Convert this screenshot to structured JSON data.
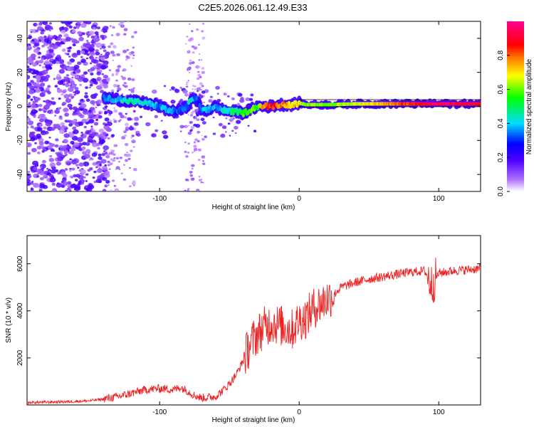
{
  "figure_title": "C2E5.2026.061.12.49.E33",
  "chart_data": [
    {
      "type": "heatmap",
      "title": "C2E5.2026.061.12.49.E33",
      "xlabel": "Height of straight line (km)",
      "ylabel": "Frequency (Hz)",
      "xlim": [
        -195,
        130
      ],
      "ylim": [
        -50,
        50
      ],
      "xticks": [
        -100,
        0,
        100
      ],
      "yticks": [
        -40,
        -20,
        0,
        20,
        40
      ],
      "colorbar": {
        "label": "Normalized spectral amplitude",
        "range": [
          0,
          1
        ],
        "ticks": [
          0.0,
          0.2,
          0.4,
          0.6,
          0.8
        ],
        "colormap": [
          "#ffffff",
          "#7b00ff",
          "#0000ff",
          "#00ffff",
          "#00ff00",
          "#ffff00",
          "#ff0000",
          "#ff00ff"
        ]
      },
      "ridge": {
        "x": [
          -140,
          -130,
          -120,
          -110,
          -100,
          -95,
          -90,
          -85,
          -80,
          -78,
          -75,
          -72,
          -70,
          -65,
          -60,
          -55,
          -50,
          -45,
          -40,
          -35,
          -30,
          -25,
          -20,
          -15,
          -10,
          -5,
          0,
          5,
          10,
          20,
          40,
          60,
          80,
          100,
          120,
          130
        ],
        "freq": [
          5,
          4,
          3,
          2,
          0,
          -2,
          -3,
          -2,
          0,
          3,
          5,
          2,
          -3,
          -2,
          0,
          -2,
          -3,
          -3,
          -4,
          -2,
          0,
          0,
          0,
          1,
          1,
          1,
          2,
          1,
          1,
          1,
          1.5,
          1.5,
          1.5,
          1.5,
          1.5,
          1.5
        ],
        "amplitude": [
          0.35,
          0.4,
          0.45,
          0.4,
          0.35,
          0.4,
          0.35,
          0.3,
          0.35,
          0.5,
          0.3,
          0.3,
          0.35,
          0.4,
          0.35,
          0.4,
          0.45,
          0.5,
          0.55,
          0.6,
          0.55,
          0.8,
          0.85,
          0.8,
          0.75,
          0.7,
          0.7,
          0.6,
          0.6,
          0.6,
          0.65,
          0.75,
          0.85,
          0.95,
          0.9,
          0.9
        ]
      }
    },
    {
      "type": "line",
      "xlabel": "Height of straight line (km)",
      "ylabel": "SNR (10 * v/v)",
      "xlim": [
        -195,
        130
      ],
      "ylim": [
        0,
        7200
      ],
      "xticks": [
        -100,
        0,
        100
      ],
      "yticks": [
        2000,
        4000,
        6000
      ],
      "color": "#ee2222",
      "series": [
        {
          "name": "SNR",
          "x": [
            -195,
            -180,
            -160,
            -150,
            -140,
            -130,
            -120,
            -110,
            -100,
            -90,
            -85,
            -80,
            -75,
            -70,
            -60,
            -55,
            -50,
            -45,
            -40,
            -35,
            -30,
            -25,
            -20,
            -15,
            -10,
            -5,
            0,
            5,
            10,
            15,
            20,
            25,
            30,
            40,
            50,
            60,
            70,
            80,
            90,
            95,
            100,
            110,
            120,
            130
          ],
          "y": [
            100,
            120,
            150,
            180,
            250,
            350,
            500,
            650,
            700,
            650,
            750,
            600,
            400,
            300,
            350,
            600,
            900,
            1300,
            1900,
            2600,
            3000,
            3300,
            3500,
            3400,
            3300,
            3200,
            3600,
            3700,
            4100,
            4300,
            4500,
            4700,
            5000,
            5200,
            5350,
            5450,
            5550,
            5650,
            5700,
            5100,
            5600,
            5700,
            5750,
            5800
          ]
        }
      ]
    }
  ]
}
